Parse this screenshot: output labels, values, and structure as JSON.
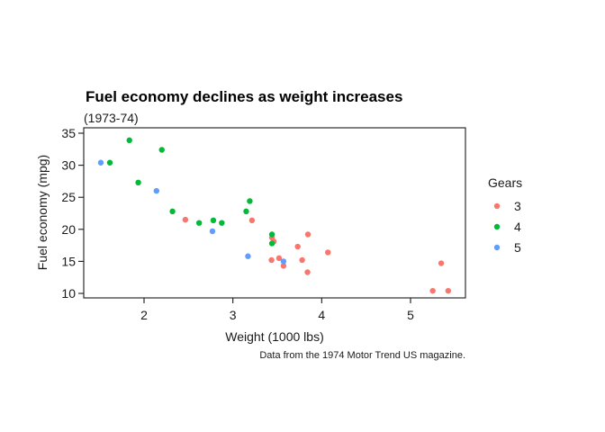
{
  "chart_data": {
    "type": "scatter",
    "title": "Fuel economy declines as weight increases",
    "subtitle": "(1973-74)",
    "caption": "Data from the 1974 Motor Trend US magazine.",
    "xlabel": "Weight (1000 lbs)",
    "ylabel": "Fuel economy (mpg)",
    "xlim": [
      1.3,
      5.6
    ],
    "ylim": [
      9.2,
      35
    ],
    "xticks": [
      2,
      3,
      4,
      5
    ],
    "yticks": [
      10,
      15,
      20,
      25,
      30,
      35
    ],
    "grid": false,
    "legend": {
      "title": "Gears",
      "position": "right",
      "entries": [
        {
          "label": "3",
          "color": "#F8766D"
        },
        {
          "label": "4",
          "color": "#00BA38"
        },
        {
          "label": "5",
          "color": "#619CFF"
        }
      ]
    },
    "series": [
      {
        "name": "3",
        "color": "#F8766D",
        "points": [
          [
            3.215,
            21.4
          ],
          [
            3.44,
            18.7
          ],
          [
            3.46,
            18.1
          ],
          [
            3.57,
            14.3
          ],
          [
            4.07,
            16.4
          ],
          [
            3.73,
            17.3
          ],
          [
            3.78,
            15.2
          ],
          [
            5.25,
            10.4
          ],
          [
            5.424,
            10.4
          ],
          [
            5.345,
            14.7
          ],
          [
            2.465,
            21.5
          ],
          [
            3.52,
            15.5
          ],
          [
            3.435,
            15.2
          ],
          [
            3.84,
            13.3
          ],
          [
            3.845,
            19.2
          ]
        ]
      },
      {
        "name": "4",
        "color": "#00BA38",
        "points": [
          [
            2.62,
            21.0
          ],
          [
            2.875,
            21.0
          ],
          [
            2.32,
            22.8
          ],
          [
            3.19,
            24.4
          ],
          [
            3.15,
            22.8
          ],
          [
            3.44,
            19.2
          ],
          [
            3.44,
            17.8
          ],
          [
            2.2,
            32.4
          ],
          [
            1.615,
            30.4
          ],
          [
            1.835,
            33.9
          ],
          [
            1.935,
            27.3
          ],
          [
            2.78,
            21.4
          ]
        ]
      },
      {
        "name": "5",
        "color": "#619CFF",
        "points": [
          [
            2.14,
            26.0
          ],
          [
            1.513,
            30.4
          ],
          [
            3.17,
            15.8
          ],
          [
            2.77,
            19.7
          ],
          [
            3.57,
            15.0
          ]
        ]
      }
    ]
  }
}
